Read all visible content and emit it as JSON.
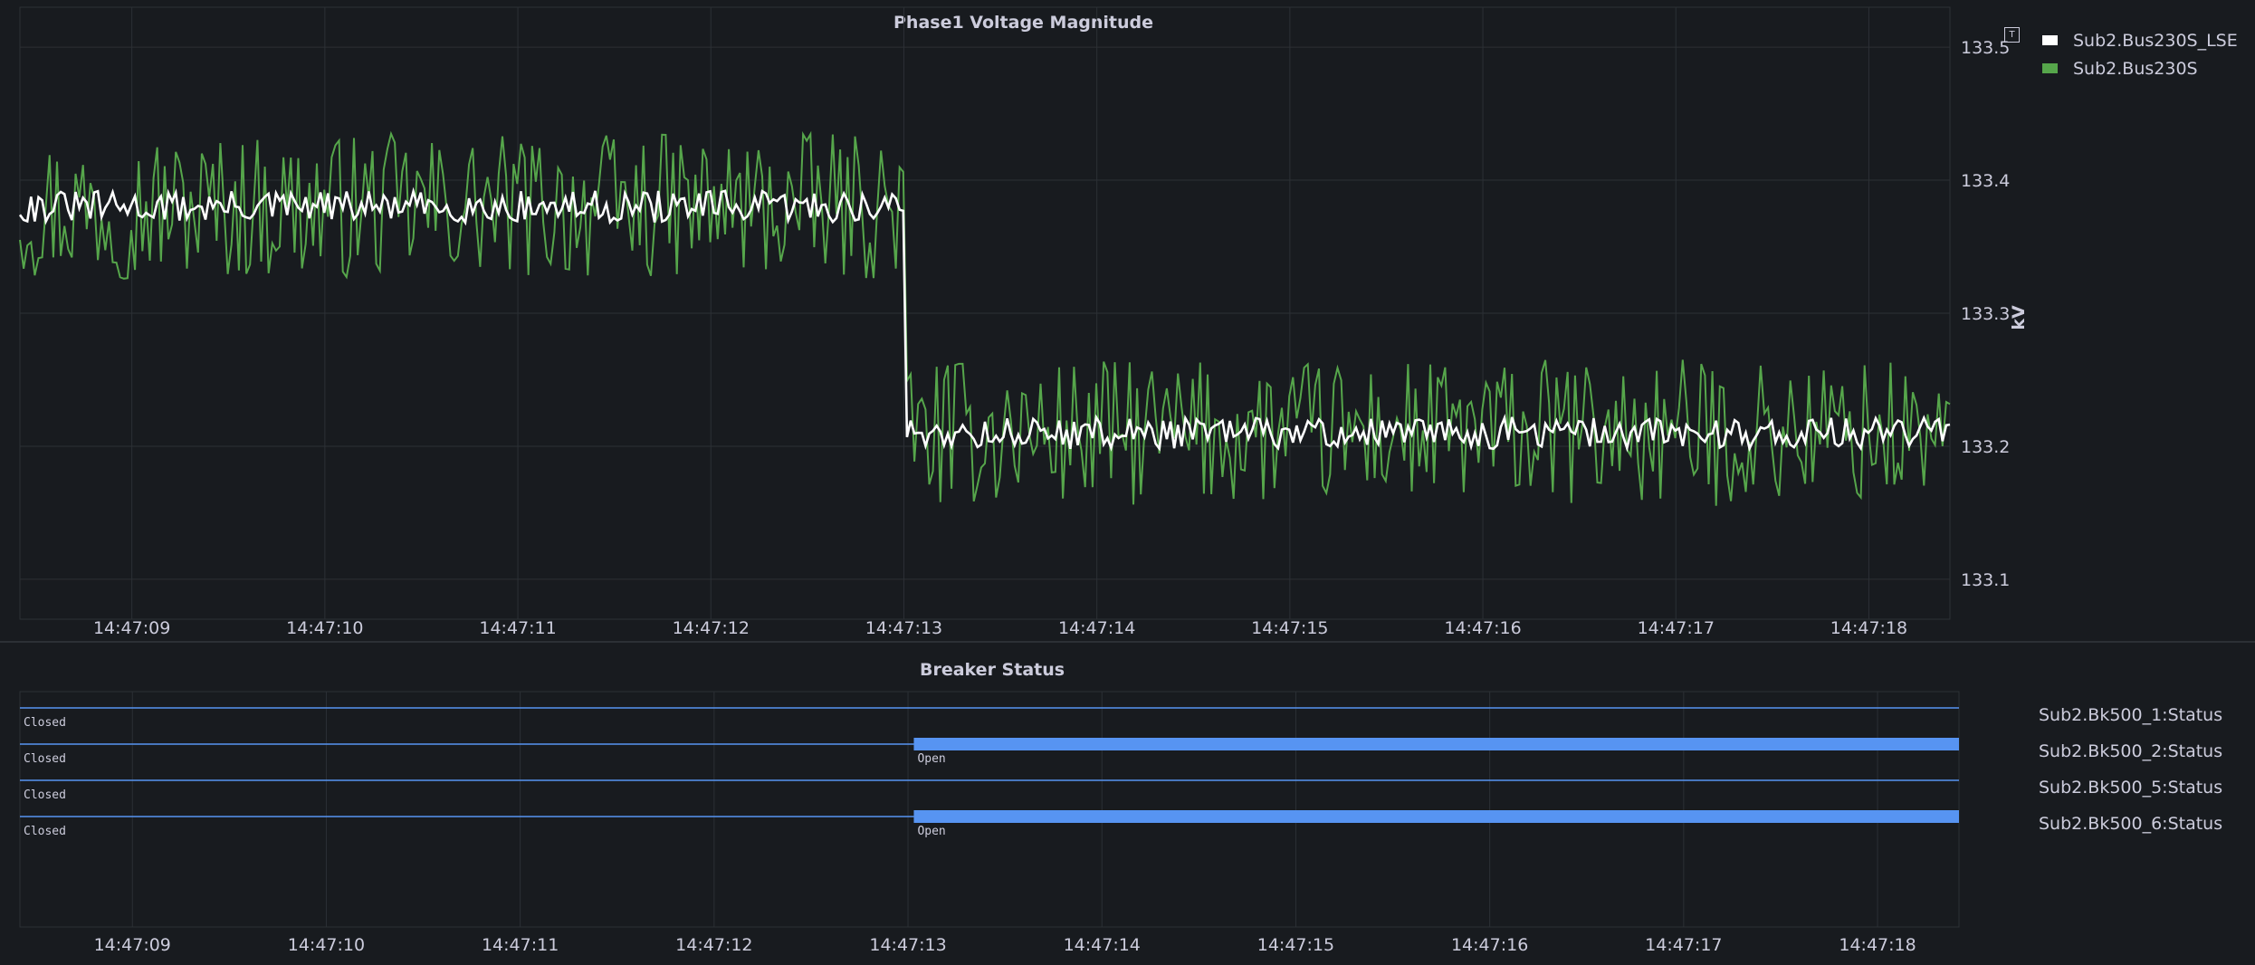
{
  "colors": {
    "background": "#181b1f",
    "grid": "#2c3035",
    "text": "#ccccdc",
    "series_lse": "#ffffff",
    "series_raw": "#56a64b",
    "breaker_line": "#5794f2",
    "breaker_open": "#5794f2"
  },
  "tooltip_icon": "T",
  "chart_data": [
    {
      "type": "line",
      "title": "Phase1 Voltage Magnitude",
      "ylabel": "kV",
      "ylim": [
        133.07,
        133.53
      ],
      "yticks": [
        "133.1",
        "133.2",
        "133.3",
        "133.4",
        "133.5"
      ],
      "xtick_labels": [
        "14:47:09",
        "14:47:10",
        "14:47:11",
        "14:47:12",
        "14:47:13",
        "14:47:14",
        "14:47:15",
        "14:47:16",
        "14:47:17",
        "14:47:18"
      ],
      "time_range": [
        "14:47:08.42",
        "14:47:18.42"
      ],
      "step_time": "14:47:13.00",
      "legend_placement": "top-right",
      "grid": true,
      "series": [
        {
          "name": "Sub2.Bus230S_LSE",
          "color": "#ffffff",
          "before_level": 133.38,
          "after_level": 133.21,
          "noise_amplitude": 0.012
        },
        {
          "name": "Sub2.Bus230S",
          "color": "#56a64b",
          "before_level": 133.38,
          "after_level": 133.21,
          "noise_amplitude": 0.055
        }
      ]
    },
    {
      "type": "state-timeline",
      "title": "Breaker Status",
      "xtick_labels": [
        "14:47:09",
        "14:47:10",
        "14:47:11",
        "14:47:12",
        "14:47:13",
        "14:47:14",
        "14:47:15",
        "14:47:16",
        "14:47:17",
        "14:47:18"
      ],
      "rows": [
        {
          "name": "Sub2.Bk500_1:Status",
          "segments": [
            {
              "state": "Closed",
              "start": "14:47:08.42",
              "end": "14:47:18.42"
            }
          ]
        },
        {
          "name": "Sub2.Bk500_2:Status",
          "segments": [
            {
              "state": "Closed",
              "start": "14:47:08.42",
              "end": "14:47:13.03"
            },
            {
              "state": "Open",
              "start": "14:47:13.03",
              "end": "14:47:18.42"
            }
          ]
        },
        {
          "name": "Sub2.Bk500_5:Status",
          "segments": [
            {
              "state": "Closed",
              "start": "14:47:08.42",
              "end": "14:47:18.42"
            }
          ]
        },
        {
          "name": "Sub2.Bk500_6:Status",
          "segments": [
            {
              "state": "Closed",
              "start": "14:47:08.42",
              "end": "14:47:13.03"
            },
            {
              "state": "Open",
              "start": "14:47:13.03",
              "end": "14:47:18.42"
            }
          ]
        }
      ]
    }
  ]
}
